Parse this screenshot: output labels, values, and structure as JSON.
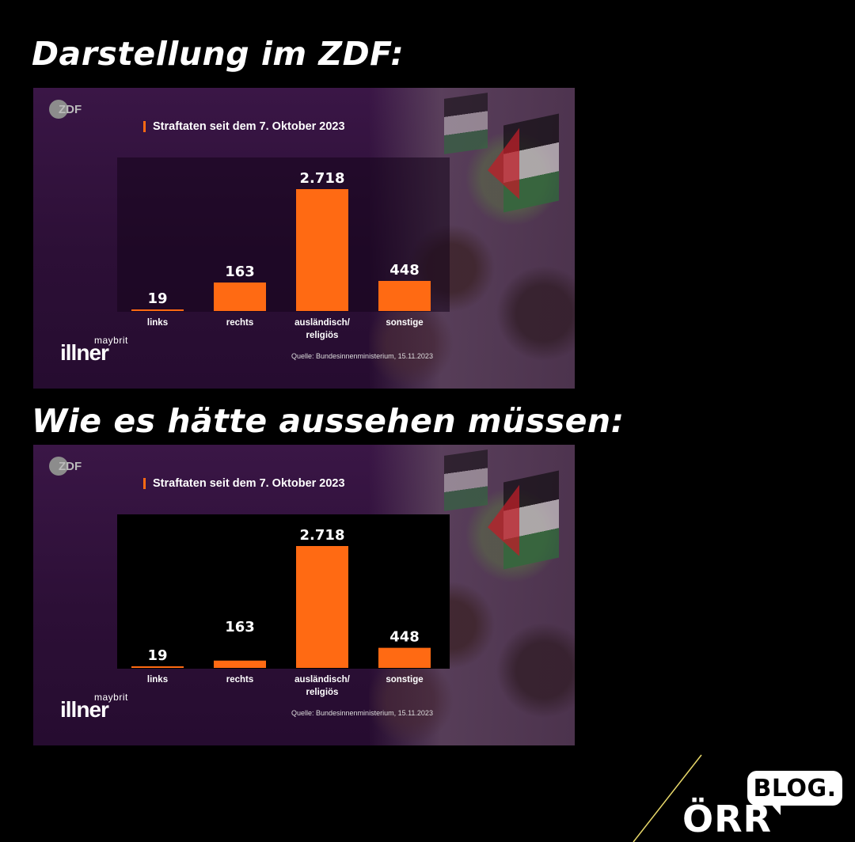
{
  "headings": {
    "top": "Darstellung im ZDF:",
    "bottom": "Wie es hätte aussehen müssen:"
  },
  "panel": {
    "broadcaster_logo": "ZDF",
    "show_logo_small": "maybrit",
    "show_logo_big": "illner",
    "source": "Quelle: Bundesinnenministerium, 15.11.2023"
  },
  "branding": {
    "orr": "ÖRR",
    "blog": "BLOG."
  },
  "colors": {
    "bar": "#ff6a13",
    "title_accent": "#ff6a13",
    "background": "#000000"
  },
  "chart_data": [
    {
      "type": "bar",
      "title": "Straftaten seit dem 7. Oktober 2023",
      "categories": [
        "links",
        "rechts",
        "ausländisch/\nreligiös",
        "sonstige"
      ],
      "values": [
        19,
        163,
        2718,
        448
      ],
      "value_labels": [
        "19",
        "163",
        "2.718",
        "448"
      ],
      "scaling": "as broadcast (not proportional)",
      "displayed_values": [
        19,
        163,
        2718,
        448
      ],
      "plot_background": "transparent-dark"
    },
    {
      "type": "bar",
      "title": "Straftaten seit dem 7. Oktober 2023",
      "categories": [
        "links",
        "rechts",
        "ausländisch/\nreligiös",
        "sonstige"
      ],
      "values": [
        19,
        163,
        2718,
        448
      ],
      "value_labels": [
        "19",
        "163",
        "2.718",
        "448"
      ],
      "scaling": "proportional",
      "plot_background": "black"
    }
  ]
}
